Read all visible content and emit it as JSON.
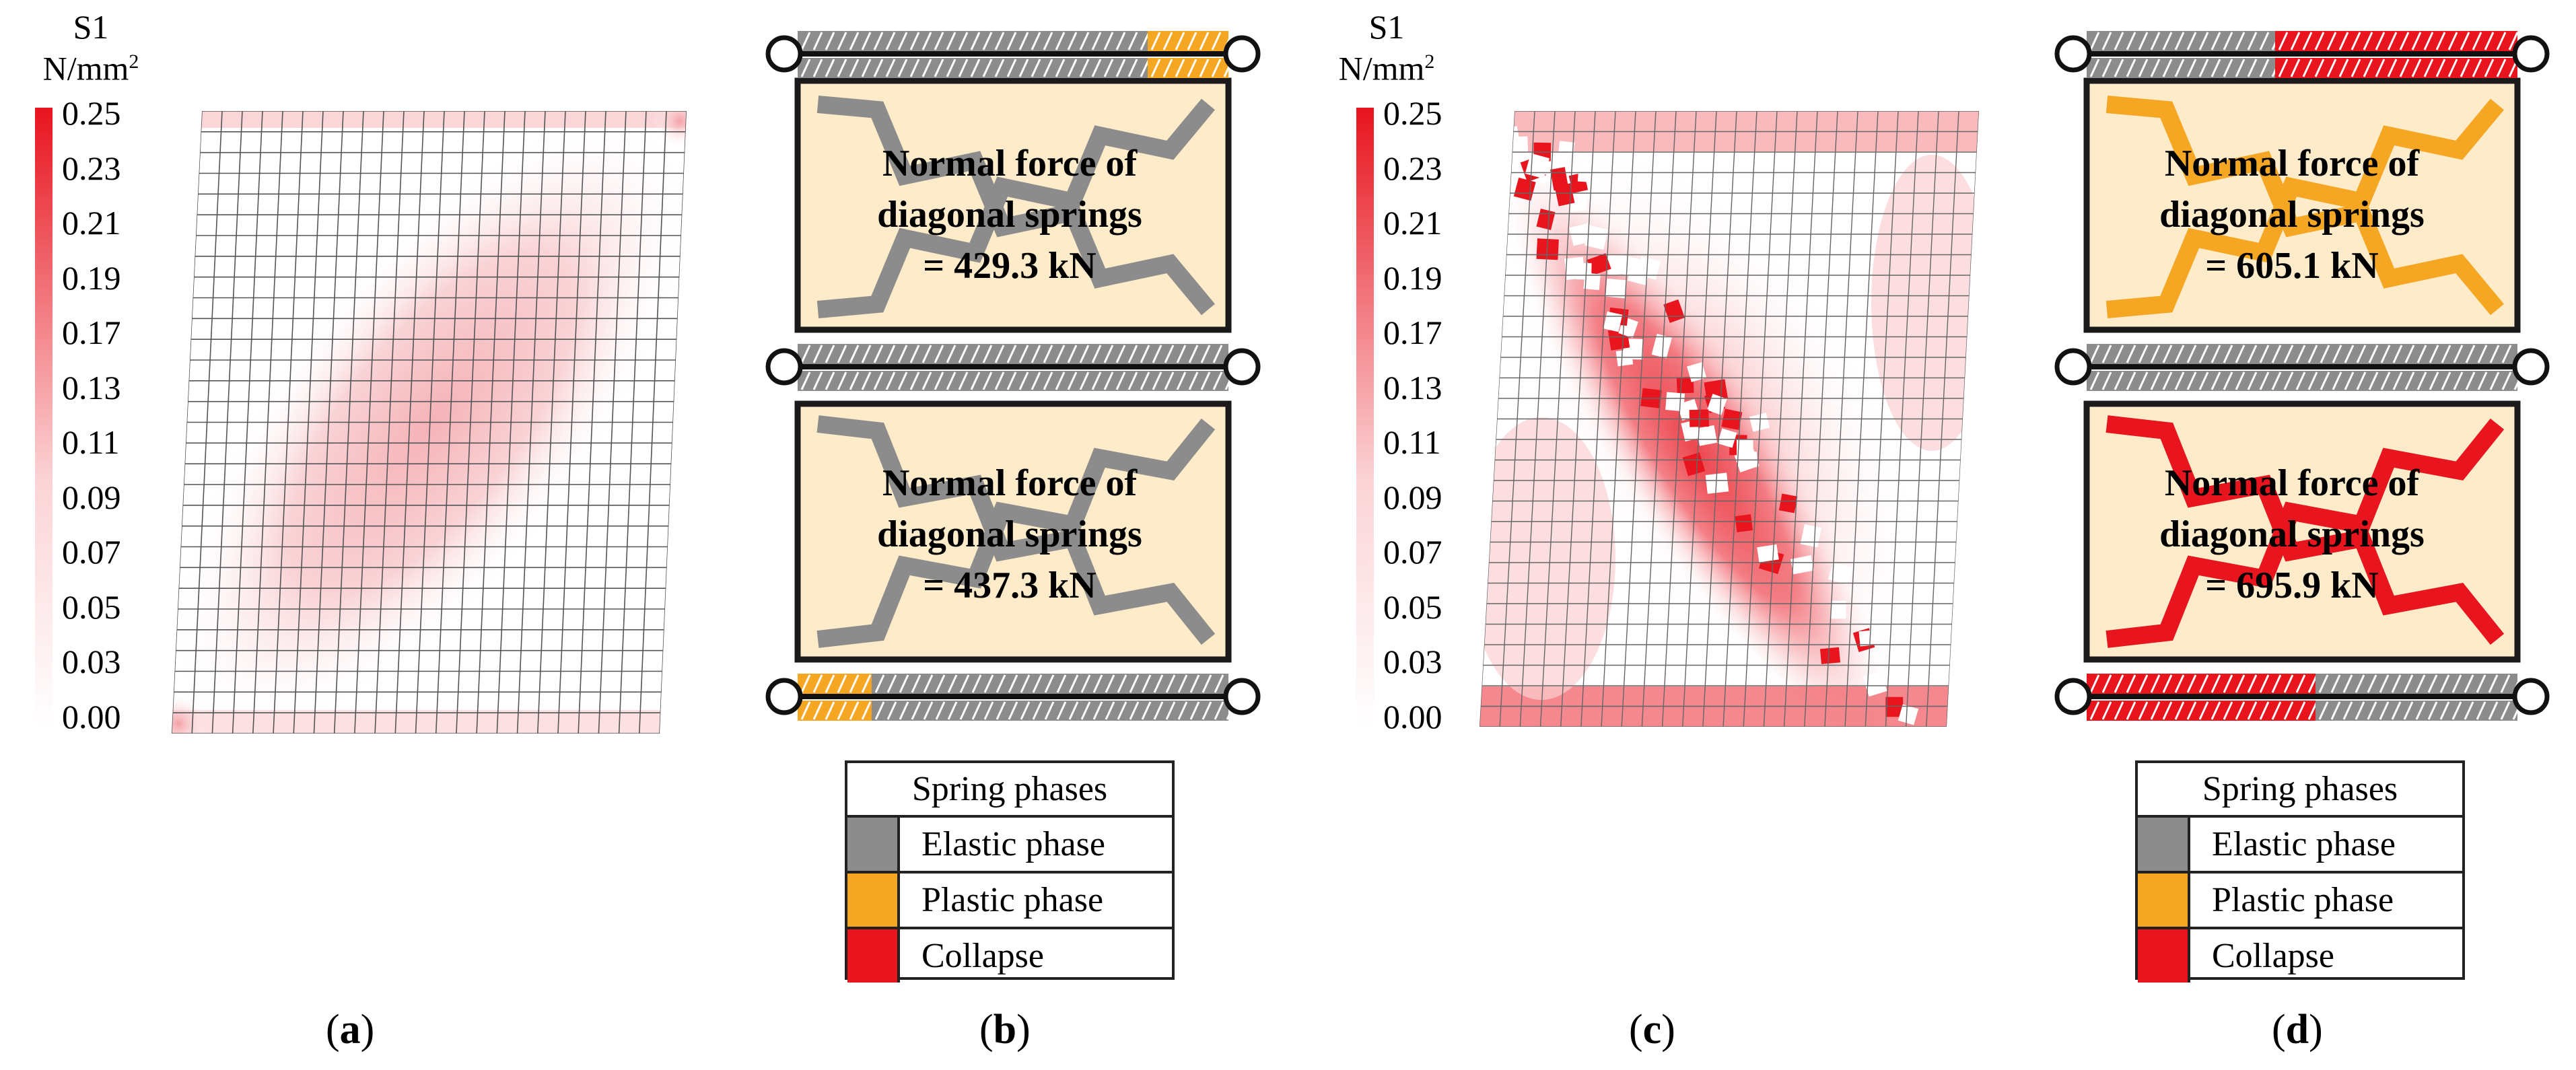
{
  "colorbar": {
    "title_line1": "S1",
    "title_line2": "N/mm",
    "title_sup": "2",
    "ticks": [
      "0.25",
      "0.23",
      "0.21",
      "0.19",
      "0.17",
      "0.13",
      "0.11",
      "0.09",
      "0.07",
      "0.05",
      "0.03",
      "0.00"
    ],
    "color_max": "#e8141e",
    "color_min": "#ffffff"
  },
  "panels": [
    {
      "caption": "a",
      "description": "stress contour, diagonal band moderate",
      "peak_level": 0.15
    },
    {
      "caption": "b",
      "upper_force_line1": "Normal force of",
      "upper_force_line2": "diagonal springs",
      "upper_force_line3": "= 429.3 kN",
      "lower_force_line1": "Normal force of",
      "lower_force_line2": "diagonal springs",
      "lower_force_line3": "= 437.3 kN",
      "upper_diag_phase": "elastic",
      "lower_diag_phase": "elastic"
    },
    {
      "caption": "c",
      "peak_level": 0.25
    },
    {
      "caption": "d",
      "upper_force_line1": "Normal force of",
      "upper_force_line2": "diagonal springs",
      "upper_force_line3": "= 605.1 kN",
      "lower_force_line1": "Normal force of",
      "lower_force_line2": "diagonal springs",
      "lower_force_line3": "= 695.9 kN",
      "upper_diag_phase": "plastic",
      "lower_diag_phase": "collapse"
    }
  ],
  "legend": {
    "title": "Spring phases",
    "items": [
      {
        "label": "Elastic phase",
        "color": "#8c8c8c"
      },
      {
        "label": "Plastic phase",
        "color": "#f5a623"
      },
      {
        "label": "Collapse",
        "color": "#e8141e"
      }
    ]
  },
  "colors": {
    "elastic": "#8c8c8c",
    "plastic": "#f5a623",
    "collapse": "#e8141e",
    "panel_fill": "#fdebc9",
    "frame": "#1a1a1a"
  }
}
